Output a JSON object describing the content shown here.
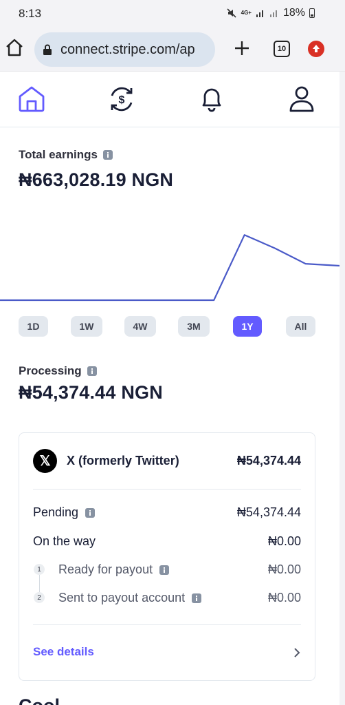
{
  "status_bar": {
    "time": "8:13",
    "network_top": "4G+",
    "battery": "18%"
  },
  "browser": {
    "url": "connect.stripe.com/ap",
    "tab_count": "10"
  },
  "nav": {
    "items": [
      "home-icon",
      "payments-icon",
      "bell-icon",
      "profile-icon"
    ],
    "active": "home"
  },
  "earnings": {
    "label": "Total earnings",
    "amount": "₦663,028.19 NGN"
  },
  "chart_data": {
    "type": "line",
    "title": "",
    "color": "#4a5ac8",
    "x": [
      0,
      0.05,
      0.1,
      0.15,
      0.2,
      0.25,
      0.3,
      0.35,
      0.4,
      0.45,
      0.5,
      0.55,
      0.6,
      0.63,
      0.72,
      0.81,
      0.9,
      1.0
    ],
    "values": [
      0,
      0,
      0,
      0,
      0,
      0,
      0,
      0,
      0,
      0,
      0,
      0,
      0,
      0,
      663028.19,
      528000,
      370000,
      350000
    ],
    "ylim": [
      0,
      700000
    ],
    "grid": false,
    "legend": "none"
  },
  "ranges": {
    "items": [
      "1D",
      "1W",
      "4W",
      "3M",
      "1Y",
      "All"
    ],
    "active": "1Y"
  },
  "processing": {
    "label": "Processing",
    "amount": "₦54,374.44 NGN"
  },
  "card": {
    "merchant_name": "X (formerly Twitter)",
    "merchant_logo": "𝕏",
    "merchant_amount": "₦54,374.44",
    "pending_label": "Pending",
    "pending_amount": "₦54,374.44",
    "on_the_way_label": "On the way",
    "on_the_way_amount": "₦0.00",
    "step1_num": "1",
    "step1_label": "Ready for payout",
    "step1_amount": "₦0.00",
    "step2_num": "2",
    "step2_label": "Sent to payout account",
    "step2_amount": "₦0.00",
    "see_details": "See details"
  },
  "next_heading": "Cool"
}
